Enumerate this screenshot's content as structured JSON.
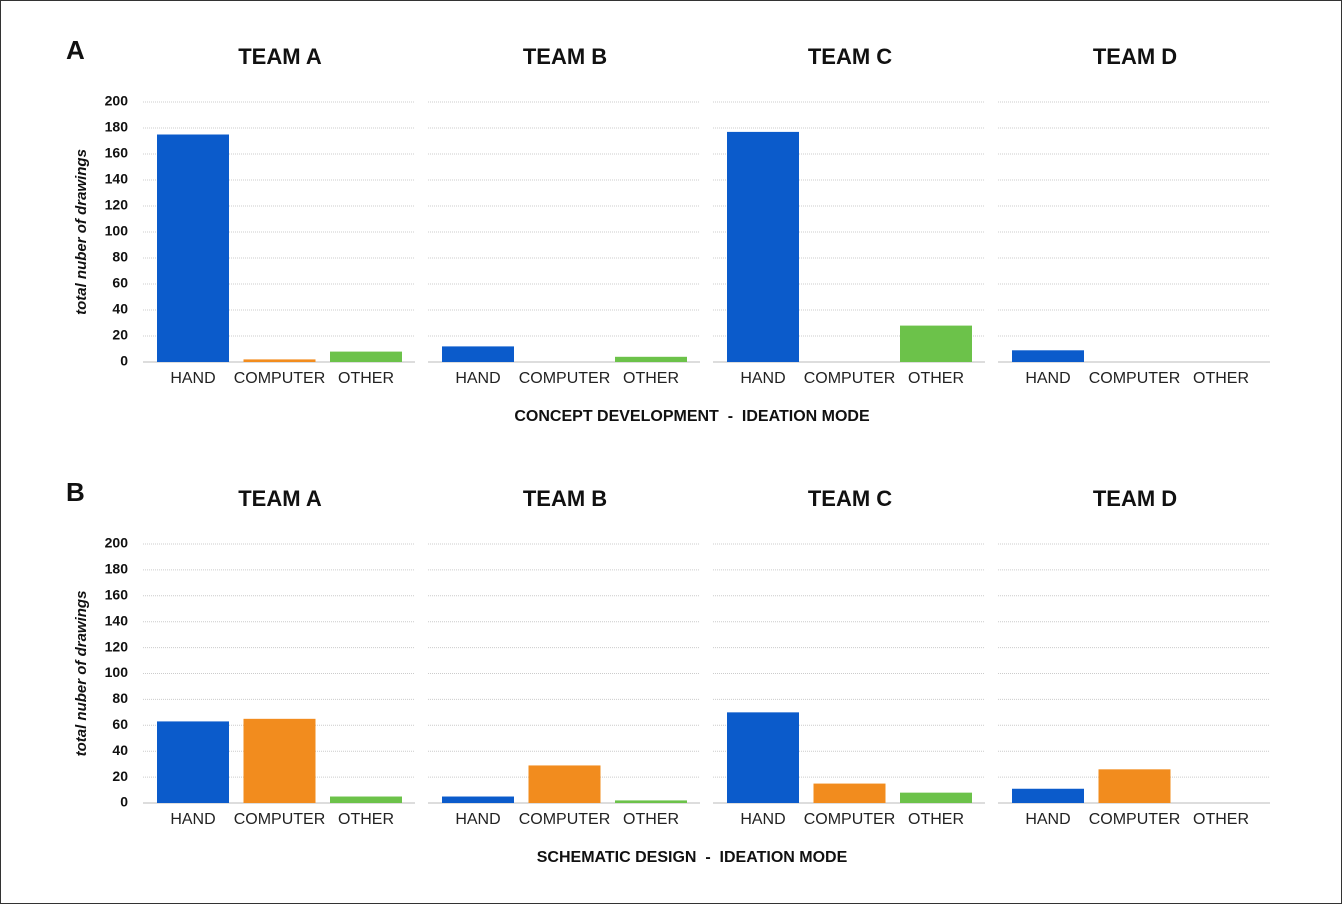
{
  "chart_data": [
    {
      "type": "bar",
      "panel": "A",
      "ylabel": "total nuber of drawings",
      "xlabel": "CONCEPT DEVELOPMENT  -  IDEATION MODE",
      "categories": [
        "HAND",
        "COMPUTER",
        "OTHER"
      ],
      "colors": [
        "#0b5bcb",
        "#f28c1e",
        "#6cc24a"
      ],
      "ylim": [
        0,
        200
      ],
      "yticks": [
        0,
        20,
        40,
        60,
        80,
        100,
        120,
        140,
        160,
        180,
        200
      ],
      "grid": true,
      "teams": [
        {
          "title": "TEAM A",
          "values": [
            175,
            2,
            8
          ]
        },
        {
          "title": "TEAM B",
          "values": [
            12,
            0,
            4
          ]
        },
        {
          "title": "TEAM C",
          "values": [
            177,
            0,
            28
          ]
        },
        {
          "title": "TEAM D",
          "values": [
            9,
            0,
            0
          ]
        }
      ]
    },
    {
      "type": "bar",
      "panel": "B",
      "ylabel": "total nuber of drawings",
      "xlabel": "SCHEMATIC DESIGN  -  IDEATION MODE",
      "categories": [
        "HAND",
        "COMPUTER",
        "OTHER"
      ],
      "colors": [
        "#0b5bcb",
        "#f28c1e",
        "#6cc24a"
      ],
      "ylim": [
        0,
        200
      ],
      "yticks": [
        0,
        20,
        40,
        60,
        80,
        100,
        120,
        140,
        160,
        180,
        200
      ],
      "grid": true,
      "teams": [
        {
          "title": "TEAM A",
          "values": [
            63,
            65,
            5
          ]
        },
        {
          "title": "TEAM B",
          "values": [
            5,
            29,
            2
          ]
        },
        {
          "title": "TEAM C",
          "values": [
            70,
            15,
            8
          ]
        },
        {
          "title": "TEAM D",
          "values": [
            11,
            26,
            0
          ]
        }
      ]
    }
  ]
}
